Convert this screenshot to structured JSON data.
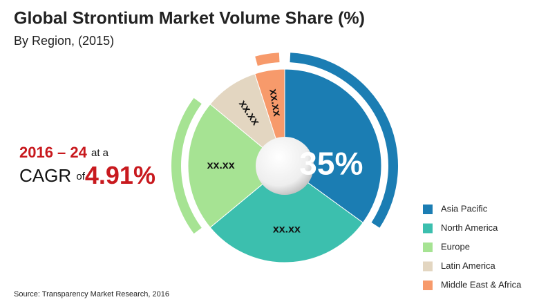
{
  "chart_data": {
    "type": "pie",
    "title": "Global Strontium Market Volume Share (%)",
    "subtitle": "By Region, (2015)",
    "categories": [
      "Asia Pacific",
      "North America",
      "Europe",
      "Latin America",
      "Middle East & Africa"
    ],
    "values": [
      35,
      29,
      22,
      9,
      5
    ],
    "value_labels": [
      "35%",
      "xx.xx",
      "xx.xx",
      "xx.xx",
      "xx.xx"
    ],
    "colors": [
      "#1b7db3",
      "#3cbfae",
      "#a6e393",
      "#e3d6c1",
      "#f79a6b"
    ],
    "legend": "bottom-right",
    "annotation": {
      "period": "2016 – 24",
      "connector": "at a",
      "metric": "CAGR",
      "preposition": "of",
      "rate": "4.91%"
    },
    "source": "Source: Transparency Market Research, 2016"
  }
}
